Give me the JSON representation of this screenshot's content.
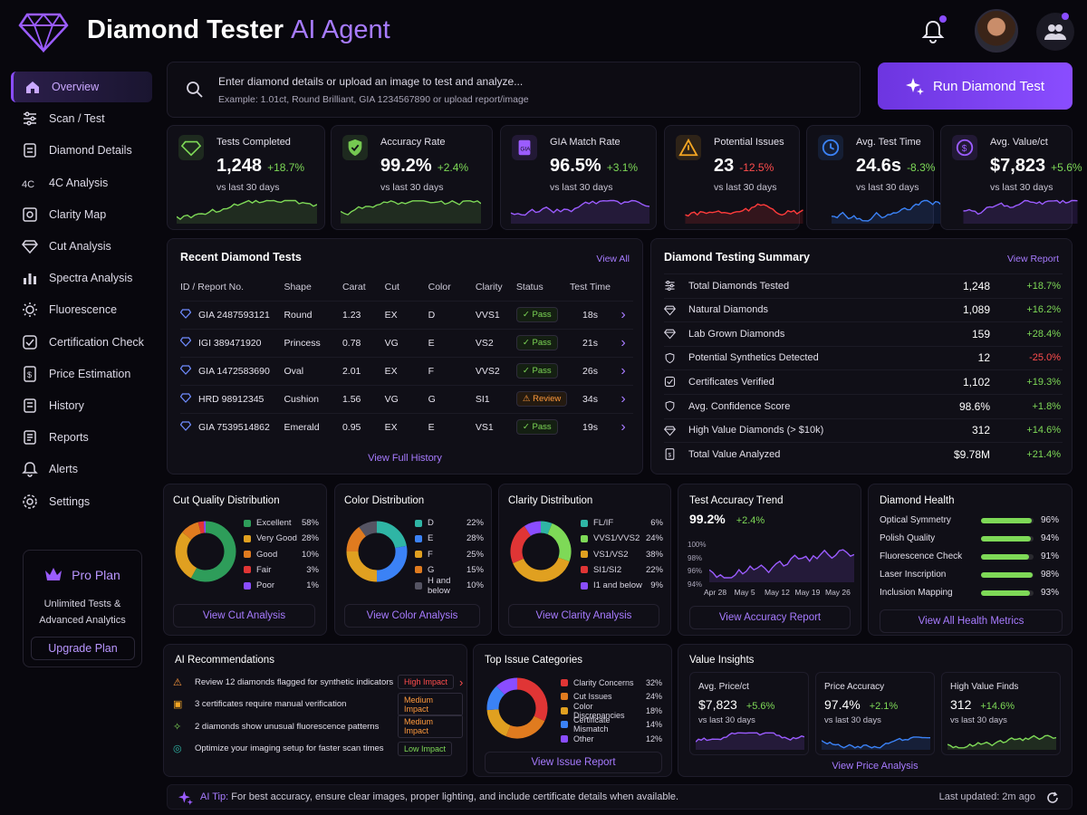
{
  "header": {
    "title_main": "Diamond Tester",
    "title_accent": "AI Agent"
  },
  "nav": [
    {
      "label": "Overview",
      "icon": "home-icon"
    },
    {
      "label": "Scan / Test",
      "icon": "sliders-icon"
    },
    {
      "label": "Diamond Details",
      "icon": "document-icon"
    },
    {
      "label": "4C Analysis",
      "icon": "4c-icon"
    },
    {
      "label": "Clarity Map",
      "icon": "map-icon"
    },
    {
      "label": "Cut Analysis",
      "icon": "diamond-icon"
    },
    {
      "label": "Spectra Analysis",
      "icon": "bars-icon"
    },
    {
      "label": "Fluorescence",
      "icon": "sun-icon"
    },
    {
      "label": "Certification Check",
      "icon": "certificate-icon"
    },
    {
      "label": "Price Estimation",
      "icon": "dollar-icon"
    },
    {
      "label": "History",
      "icon": "history-icon"
    },
    {
      "label": "Reports",
      "icon": "report-icon"
    },
    {
      "label": "Alerts",
      "icon": "bell-icon"
    },
    {
      "label": "Settings",
      "icon": "gear-icon"
    }
  ],
  "pro": {
    "title": "Pro Plan",
    "line1": "Unlimited Tests &",
    "line2": "Advanced Analytics",
    "button": "Upgrade Plan"
  },
  "search": {
    "prompt": "Enter diamond details or upload an image to test and analyze...",
    "example": "Example: 1.01ct, Round Brilliant, GIA 1234567890 or upload report/image"
  },
  "run_button": "Run Diamond Test",
  "kpis": [
    {
      "label": "Tests Completed",
      "value": "1,248",
      "change": "+18.7%",
      "sub": "vs last 30 days",
      "color": "#7ed957",
      "up": true
    },
    {
      "label": "Accuracy Rate",
      "value": "99.2%",
      "change": "+2.4%",
      "sub": "vs last 30 days",
      "color": "#7ed957",
      "up": true
    },
    {
      "label": "GIA Match Rate",
      "value": "96.5%",
      "change": "+3.1%",
      "sub": "vs last 30 days",
      "color": "#9b5cff",
      "up": true
    },
    {
      "label": "Potential Issues",
      "value": "23",
      "change": "-12.5%",
      "sub": "vs last 30 days",
      "color": "#ff3b3b",
      "up": false
    },
    {
      "label": "Avg. Test Time",
      "value": "24.6s",
      "change": "-8.3%",
      "sub": "vs last 30 days",
      "color": "#3b82f6",
      "up": true
    },
    {
      "label": "Avg. Value/ct",
      "value": "$7,823",
      "change": "+5.6%",
      "sub": "vs last 30 days",
      "color": "#9b5cff",
      "up": true
    }
  ],
  "recent": {
    "title": "Recent Diamond Tests",
    "view_all": "View All",
    "footer": "View Full History",
    "headers": [
      "ID / Report No.",
      "Shape",
      "Carat",
      "Cut",
      "Color",
      "Clarity",
      "Status",
      "Test Time"
    ],
    "rows": [
      {
        "id": "GIA 2487593121",
        "shape": "Round",
        "carat": "1.23",
        "cut": "EX",
        "color": "D",
        "clarity": "VVS1",
        "status": "Pass",
        "time": "18s"
      },
      {
        "id": "IGI 389471920",
        "shape": "Princess",
        "carat": "0.78",
        "cut": "VG",
        "color": "E",
        "clarity": "VS2",
        "status": "Pass",
        "time": "21s"
      },
      {
        "id": "GIA 1472583690",
        "shape": "Oval",
        "carat": "2.01",
        "cut": "EX",
        "color": "F",
        "clarity": "VVS2",
        "status": "Pass",
        "time": "26s"
      },
      {
        "id": "HRD 98912345",
        "shape": "Cushion",
        "carat": "1.56",
        "cut": "VG",
        "color": "G",
        "clarity": "SI1",
        "status": "Review",
        "time": "34s"
      },
      {
        "id": "GIA 7539514862",
        "shape": "Emerald",
        "carat": "0.95",
        "cut": "EX",
        "color": "E",
        "clarity": "VS1",
        "status": "Pass",
        "time": "19s"
      }
    ]
  },
  "summary": {
    "title": "Diamond Testing Summary",
    "view": "View Report",
    "rows": [
      {
        "label": "Total Diamonds Tested",
        "value": "1,248",
        "change": "+18.7%",
        "up": true
      },
      {
        "label": "Natural Diamonds",
        "value": "1,089",
        "change": "+16.2%",
        "up": true
      },
      {
        "label": "Lab Grown Diamonds",
        "value": "159",
        "change": "+28.4%",
        "up": true
      },
      {
        "label": "Potential Synthetics Detected",
        "value": "12",
        "change": "-25.0%",
        "up": false
      },
      {
        "label": "Certificates Verified",
        "value": "1,102",
        "change": "+19.3%",
        "up": true
      },
      {
        "label": "Avg. Confidence Score",
        "value": "98.6%",
        "change": "+1.8%",
        "up": true
      },
      {
        "label": "High Value Diamonds (> $10k)",
        "value": "312",
        "change": "+14.6%",
        "up": true
      },
      {
        "label": "Total Value Analyzed",
        "value": "$9.78M",
        "change": "+21.4%",
        "up": true
      }
    ]
  },
  "cut_dist": {
    "title": "Cut Quality Distribution",
    "button": "View Cut Analysis",
    "items": [
      {
        "label": "Excellent",
        "pct": "58%",
        "v": 58,
        "color": "#2e9d5a"
      },
      {
        "label": "Very Good",
        "pct": "28%",
        "v": 28,
        "color": "#e0a020"
      },
      {
        "label": "Good",
        "pct": "10%",
        "v": 10,
        "color": "#e07b1f"
      },
      {
        "label": "Fair",
        "pct": "3%",
        "v": 3,
        "color": "#e03535"
      },
      {
        "label": "Poor",
        "pct": "1%",
        "v": 1,
        "color": "#8a4dff"
      }
    ]
  },
  "color_dist": {
    "title": "Color Distribution",
    "button": "View Color Analysis",
    "items": [
      {
        "label": "D",
        "pct": "22%",
        "v": 22,
        "color": "#2fb5a5"
      },
      {
        "label": "E",
        "pct": "28%",
        "v": 28,
        "color": "#3b82f6"
      },
      {
        "label": "F",
        "pct": "25%",
        "v": 25,
        "color": "#e0a020"
      },
      {
        "label": "G",
        "pct": "15%",
        "v": 15,
        "color": "#e07b1f"
      },
      {
        "label": "H and below",
        "pct": "10%",
        "v": 10,
        "color": "#555463"
      }
    ]
  },
  "clarity_dist": {
    "title": "Clarity Distribution",
    "button": "View Clarity Analysis",
    "items": [
      {
        "label": "FL/IF",
        "pct": "6%",
        "v": 6,
        "color": "#2fb5a5"
      },
      {
        "label": "VVS1/VVS2",
        "pct": "24%",
        "v": 24,
        "color": "#7ed957"
      },
      {
        "label": "VS1/VS2",
        "pct": "38%",
        "v": 38,
        "color": "#e0a020"
      },
      {
        "label": "SI1/SI2",
        "pct": "22%",
        "v": 22,
        "color": "#e03535"
      },
      {
        "label": "I1 and below",
        "pct": "9%",
        "v": 9,
        "color": "#8a4dff"
      }
    ]
  },
  "accuracy": {
    "title": "Test Accuracy Trend",
    "value": "99.2%",
    "change": "+2.4%",
    "button": "View Accuracy Report",
    "yticks": [
      "100%",
      "98%",
      "96%",
      "94%"
    ],
    "xticks": [
      "Apr 28",
      "May 5",
      "May 12",
      "May 19",
      "May 26"
    ]
  },
  "health": {
    "title": "Diamond Health",
    "button": "View All Health Metrics",
    "items": [
      {
        "label": "Optical Symmetry",
        "pct": "96%",
        "v": 0.96
      },
      {
        "label": "Polish Quality",
        "pct": "94%",
        "v": 0.94
      },
      {
        "label": "Fluorescence Check",
        "pct": "91%",
        "v": 0.91
      },
      {
        "label": "Laser Inscription",
        "pct": "98%",
        "v": 0.98
      },
      {
        "label": "Inclusion Mapping",
        "pct": "93%",
        "v": 0.93
      }
    ]
  },
  "recs": {
    "title": "AI Recommendations",
    "items": [
      {
        "text": "Review 12 diamonds flagged for synthetic indicators",
        "impact": "High Impact",
        "color": "#ff4d4d"
      },
      {
        "text": "3 certificates require manual verification",
        "impact": "Medium Impact",
        "color": "#ff9a3c"
      },
      {
        "text": "2 diamonds show unusual fluorescence patterns",
        "impact": "Medium Impact",
        "color": "#ff9a3c"
      },
      {
        "text": "Optimize your imaging setup for faster scan times",
        "impact": "Low Impact",
        "color": "#7ed957"
      }
    ]
  },
  "issues": {
    "title": "Top Issue Categories",
    "button": "View Issue Report",
    "items": [
      {
        "label": "Clarity Concerns",
        "pct": "32%",
        "v": 32,
        "color": "#e03535"
      },
      {
        "label": "Cut Issues",
        "pct": "24%",
        "v": 24,
        "color": "#e07b1f"
      },
      {
        "label": "Color Discrepancies",
        "pct": "18%",
        "v": 18,
        "color": "#e0a020"
      },
      {
        "label": "Certificate Mismatch",
        "pct": "14%",
        "v": 14,
        "color": "#3b82f6"
      },
      {
        "label": "Other",
        "pct": "12%",
        "v": 12,
        "color": "#8a4dff"
      }
    ]
  },
  "value": {
    "title": "Value Insights",
    "button": "View Price Analysis",
    "items": [
      {
        "label": "Avg. Price/ct",
        "value": "$7,823",
        "change": "+5.6%",
        "sub": "vs last 30 days",
        "color": "#9b5cff"
      },
      {
        "label": "Price Accuracy",
        "value": "97.4%",
        "change": "+2.1%",
        "sub": "vs last 30 days",
        "color": "#3b82f6"
      },
      {
        "label": "High Value Finds",
        "value": "312",
        "change": "+14.6%",
        "sub": "vs last 30 days",
        "color": "#7ed957"
      }
    ]
  },
  "tip": {
    "label": "AI Tip:",
    "text": "For best accuracy, ensure clear images, proper lighting, and include certificate details when available.",
    "updated": "Last updated: 2m ago"
  }
}
